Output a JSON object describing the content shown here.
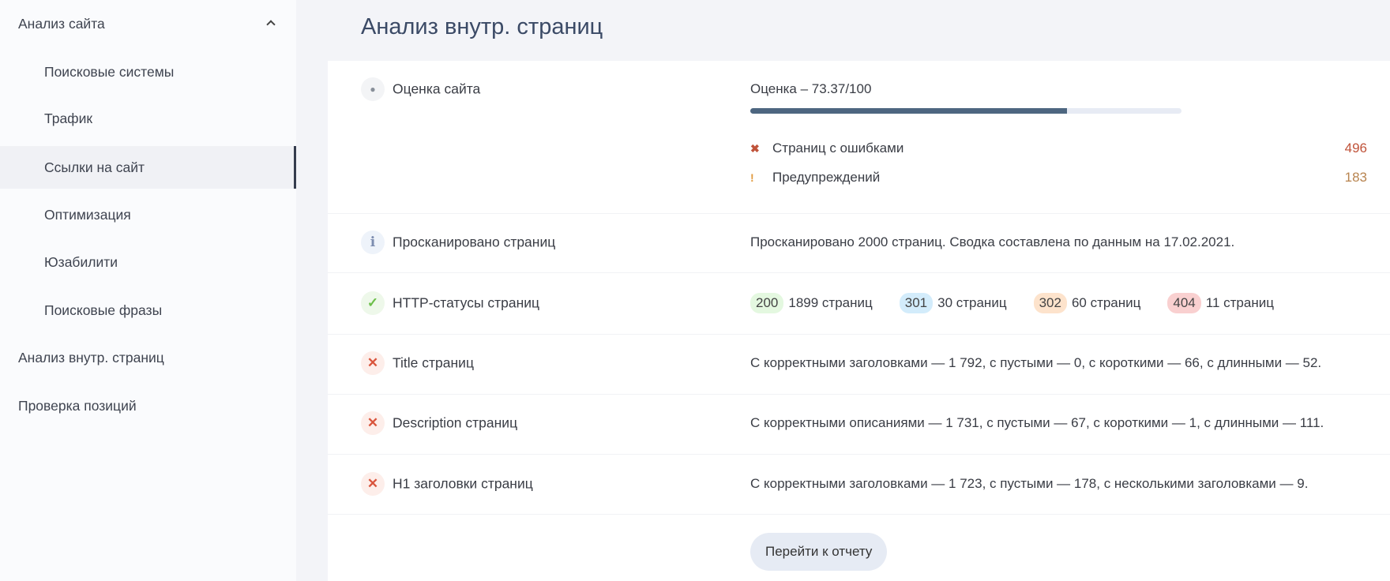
{
  "sidebar": {
    "items": [
      {
        "label": "Анализ сайта",
        "level": "top",
        "expanded": true
      },
      {
        "label": "Поисковые системы",
        "level": "sub"
      },
      {
        "label": "Трафик",
        "level": "sub"
      },
      {
        "label": "Ссылки на сайт",
        "level": "sub",
        "active": true
      },
      {
        "label": "Оптимизация",
        "level": "sub"
      },
      {
        "label": "Юзабилити",
        "level": "sub"
      },
      {
        "label": "Поисковые фразы",
        "level": "sub"
      },
      {
        "label": "Анализ внутр. страниц",
        "level": "top"
      },
      {
        "label": "Проверка позиций",
        "level": "top"
      }
    ]
  },
  "page": {
    "title": "Анализ внутр. страниц"
  },
  "score": {
    "label": "Оценка сайта",
    "icon": "dot-icon",
    "text": "Оценка – 73.37/100",
    "value": 73.37,
    "max": 100,
    "errors": {
      "label": "Страниц с ошибками",
      "count": "496",
      "color": "#c0533a"
    },
    "warnings": {
      "label": "Предупреждений",
      "count": "183",
      "color": "#b8844f"
    }
  },
  "scanned": {
    "label": "Просканировано страниц",
    "icon": "info-icon",
    "text": "Просканировано 2000 страниц. Сводка составлена по данным на 17.02.2021."
  },
  "http": {
    "label": "HTTP-статусы страниц",
    "icon": "check-icon",
    "statuses": [
      {
        "code": "200",
        "text": "1899 страниц",
        "color": "#e4f8e0"
      },
      {
        "code": "301",
        "text": "30 страниц",
        "color": "#d3ecfb"
      },
      {
        "code": "302",
        "text": "60 страниц",
        "color": "#fde3cc"
      },
      {
        "code": "404",
        "text": "11 страниц",
        "color": "#f9d0d0"
      }
    ]
  },
  "title_check": {
    "label": "Title страниц",
    "icon": "cross-icon",
    "text": "С корректными заголовками — 1 792, с пустыми — 0, с короткими — 66, с длинными — 52."
  },
  "description_check": {
    "label": "Description страниц",
    "icon": "cross-icon",
    "text": "С корректными описаниями — 1 731, с пустыми — 67, с короткими — 1, с длинными — 111."
  },
  "h1_check": {
    "label": "H1 заголовки страниц",
    "icon": "cross-icon",
    "text": "С корректными заголовками — 1 723, с пустыми — 178, с несколькими заголовками — 9."
  },
  "report_button": "Перейти к отчету"
}
